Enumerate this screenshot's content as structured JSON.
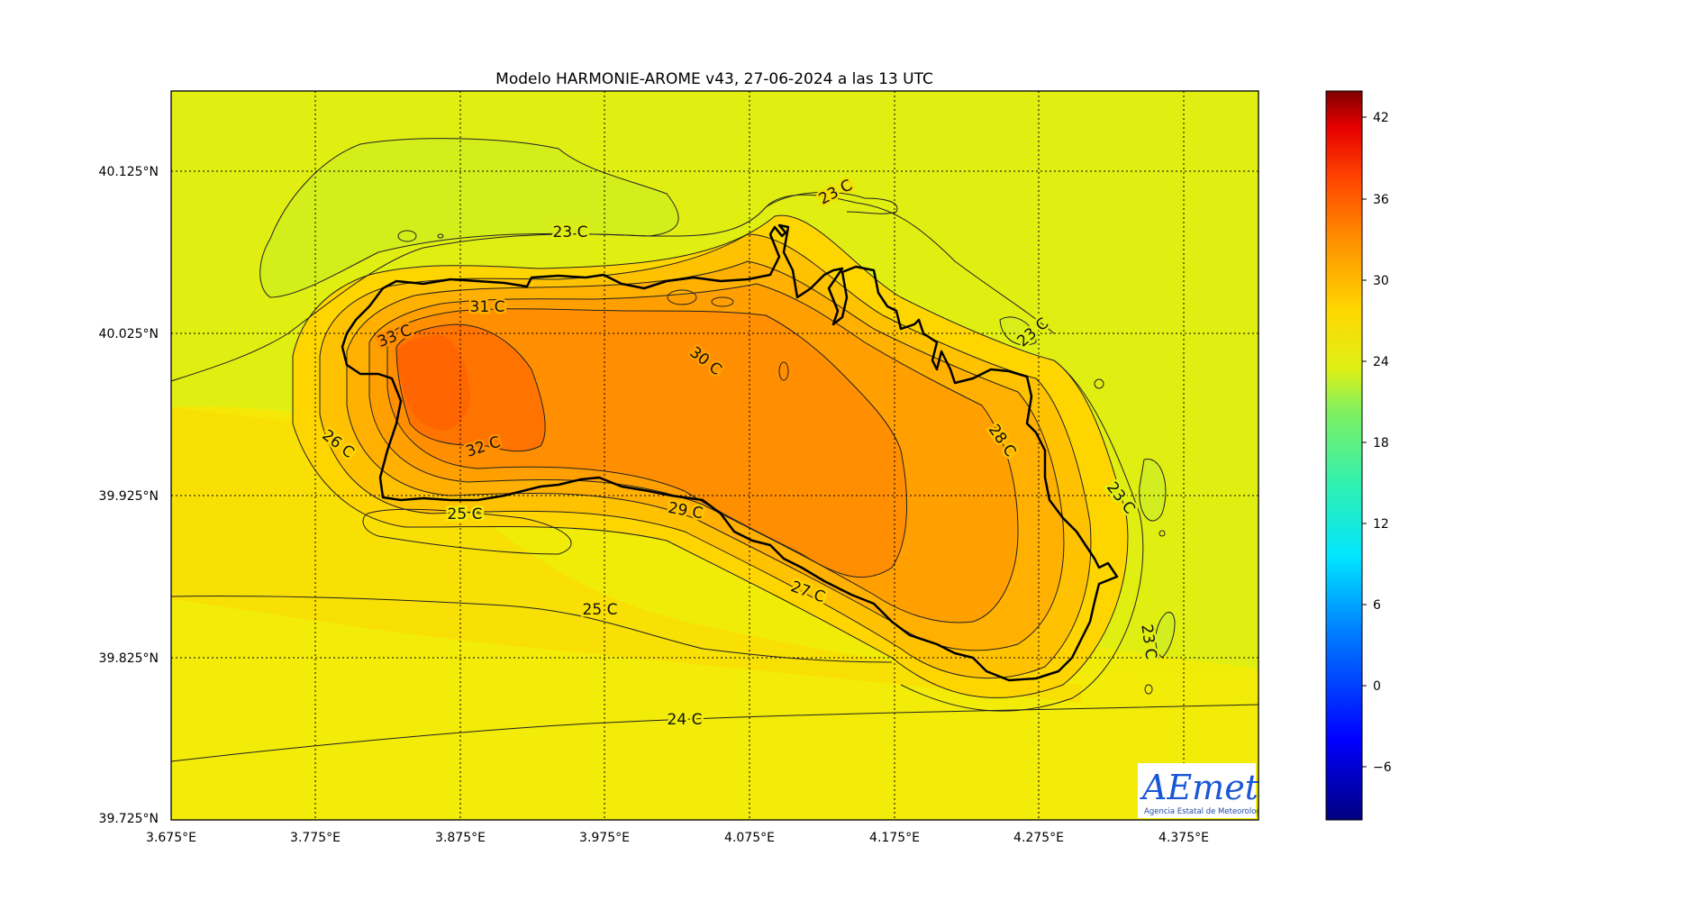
{
  "title": "Modelo HARMONIE-AROME v43, 27-06-2024 a las 13 UTC",
  "x_axis": {
    "ticks": [
      "3.675°E",
      "3.775°E",
      "3.875°E",
      "3.975°E",
      "4.075°E",
      "4.175°E",
      "4.275°E",
      "4.375°E"
    ]
  },
  "y_axis": {
    "ticks": [
      "40.125°N",
      "40.025°N",
      "39.925°N",
      "39.825°N",
      "39.725°N"
    ]
  },
  "colorbar": {
    "ticks": [
      "42",
      "36",
      "30",
      "24",
      "18",
      "12",
      "6",
      "0",
      "−6"
    ],
    "range": [
      -9,
      44
    ]
  },
  "contour_labels": [
    "23 C",
    "23 C",
    "31 C",
    "33 C",
    "30 C",
    "23 C",
    "28 C",
    "26 C",
    "32 C",
    "23 C",
    "25 C",
    "29 C",
    "27 C",
    "25 C",
    "23 C",
    "24 C"
  ],
  "logo": {
    "name": "AEmet",
    "subtitle": "Agencia Estatal de Meteorología"
  }
}
